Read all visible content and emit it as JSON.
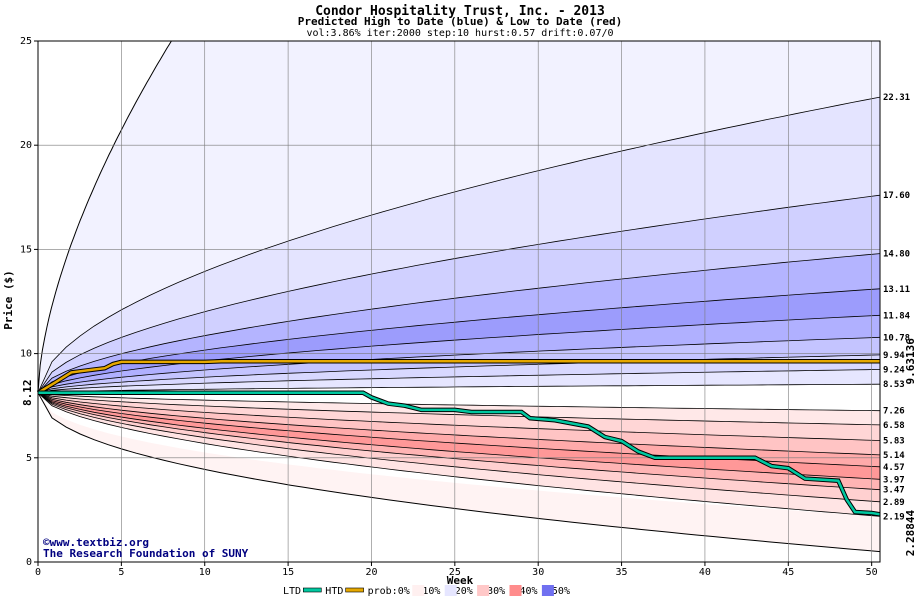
{
  "chart_data": {
    "type": "area",
    "title": "Condor Hospitality Trust, Inc. - 2013",
    "subtitle": "Predicted High to Date (blue) &  Low to Date (red)",
    "params": "vol:3.86% iter:2000 step:10 hurst:0.57 drift:0.07/0",
    "xlabel": "Week",
    "ylabel": "Price ($)",
    "xlim": [
      0,
      50.5
    ],
    "ylim": [
      0,
      25
    ],
    "x_ticks": [
      0,
      5,
      10,
      15,
      20,
      25,
      30,
      35,
      40,
      45,
      50
    ],
    "y_ticks": [
      0,
      5,
      10,
      15,
      20,
      25
    ],
    "grid": true,
    "start_price": 8.12,
    "start_label": "8.12",
    "high_quantiles": [
      {
        "end": 8.53,
        "label": "8.53"
      },
      {
        "end": 9.24,
        "label": "9.24"
      },
      {
        "end": 9.94,
        "label": "9.94"
      },
      {
        "end": 10.78,
        "label": "10.78"
      },
      {
        "end": 11.84,
        "label": "11.84"
      },
      {
        "end": 13.11,
        "label": "13.11"
      },
      {
        "end": 14.8,
        "label": "14.80"
      },
      {
        "end": 17.6,
        "label": "17.60"
      },
      {
        "end": 22.31,
        "label": "22.31"
      }
    ],
    "low_quantiles": [
      {
        "end": 7.26,
        "label": "7.26"
      },
      {
        "end": 6.58,
        "label": "6.58"
      },
      {
        "end": 5.83,
        "label": "5.83"
      },
      {
        "end": 5.14,
        "label": "5.14"
      },
      {
        "end": 4.57,
        "label": "4.57"
      },
      {
        "end": 3.97,
        "label": "3.97"
      },
      {
        "end": 3.47,
        "label": "3.47"
      },
      {
        "end": 2.89,
        "label": "2.89"
      },
      {
        "end": 2.19,
        "label": "2.19"
      }
    ],
    "outer_high_end_at_week_8": 25,
    "outer_low_end": 0.5,
    "htd_series": {
      "name": "HTD",
      "color": "#e6a800",
      "final_label": "9.63136",
      "points": [
        [
          0,
          8.12
        ],
        [
          1,
          8.6
        ],
        [
          2,
          9.1
        ],
        [
          3,
          9.2
        ],
        [
          4,
          9.3
        ],
        [
          4.5,
          9.5
        ],
        [
          5,
          9.6
        ],
        [
          10,
          9.6
        ],
        [
          11,
          9.63
        ],
        [
          50.5,
          9.63
        ]
      ]
    },
    "ltd_series": {
      "name": "LTD",
      "color": "#00c8a0",
      "final_label": "2.28844",
      "points": [
        [
          0,
          8.12
        ],
        [
          19.5,
          8.12
        ],
        [
          20,
          7.9
        ],
        [
          21,
          7.6
        ],
        [
          22,
          7.5
        ],
        [
          23,
          7.3
        ],
        [
          25,
          7.3
        ],
        [
          26,
          7.2
        ],
        [
          29,
          7.2
        ],
        [
          29.5,
          6.9
        ],
        [
          31,
          6.8
        ],
        [
          33,
          6.5
        ],
        [
          34,
          6.0
        ],
        [
          35,
          5.8
        ],
        [
          36,
          5.3
        ],
        [
          37,
          5.0
        ],
        [
          43,
          5.0
        ],
        [
          44,
          4.6
        ],
        [
          45,
          4.5
        ],
        [
          46,
          4.0
        ],
        [
          48,
          3.9
        ],
        [
          48.5,
          3.0
        ],
        [
          49,
          2.4
        ],
        [
          50,
          2.35
        ],
        [
          50.5,
          2.29
        ]
      ]
    },
    "legend": [
      {
        "label": "LTD",
        "swatch": "line",
        "color": "#00c8a0"
      },
      {
        "label": "HTD",
        "swatch": "line",
        "color": "#e6a800"
      },
      {
        "label": "prob:0%",
        "swatch": "none"
      },
      {
        "label": "<10%",
        "swatch": "box",
        "color": "#fff0f0"
      },
      {
        "label": "<20%",
        "swatch": "box",
        "color": "#e6e6ff"
      },
      {
        "label": "<30%",
        "swatch": "box",
        "color": "#ffc8c8"
      },
      {
        "label": "<40%",
        "swatch": "box",
        "color": "#ff8c8c"
      },
      {
        "label": "<50%",
        "swatch": "box",
        "color": "#7070f0"
      }
    ],
    "watermark": [
      "©www.textbiz.org",
      "The Research Foundation of SUNY"
    ]
  }
}
